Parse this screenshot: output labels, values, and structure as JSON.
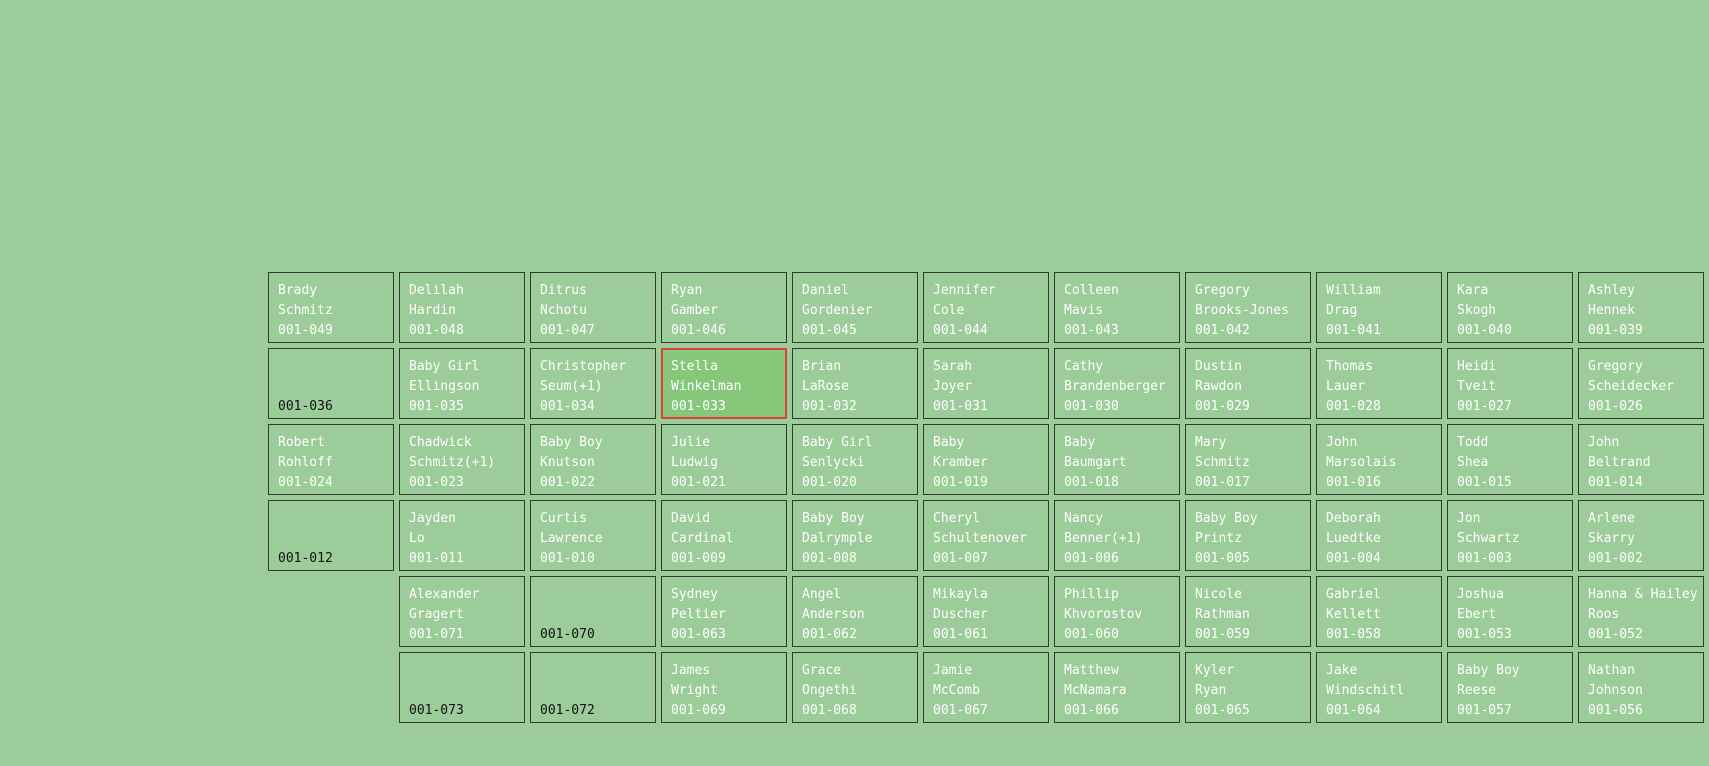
{
  "colors": {
    "background": "#9bcc99",
    "cell_border": "#2e3a2e",
    "selected_border": "#e0403a",
    "selected_fill": "#87c77a",
    "text_occupied": "#ffffff",
    "text_empty": "#111111"
  },
  "rows": [
    {
      "cells": [
        {
          "col": 0,
          "first": "Brady",
          "last": "Schmitz",
          "id": "001-049"
        },
        {
          "col": 1,
          "first": "Delilah",
          "last": "Hardin",
          "id": "001-048"
        },
        {
          "col": 2,
          "first": "Ditrus",
          "last": "Nchotu",
          "id": "001-047"
        },
        {
          "col": 3,
          "first": "Ryan",
          "last": "Gamber",
          "id": "001-046"
        },
        {
          "col": 4,
          "first": "Daniel",
          "last": "Gordenier",
          "id": "001-045"
        },
        {
          "col": 5,
          "first": "Jennifer",
          "last": "Cole",
          "id": "001-044"
        },
        {
          "col": 6,
          "first": "Colleen",
          "last": "Mavis",
          "id": "001-043"
        },
        {
          "col": 7,
          "first": "Gregory",
          "last": "Brooks-Jones",
          "id": "001-042"
        },
        {
          "col": 8,
          "first": "William",
          "last": "Drag",
          "id": "001-041"
        },
        {
          "col": 9,
          "first": "Kara",
          "last": "Skogh",
          "id": "001-040"
        },
        {
          "col": 10,
          "first": "Ashley",
          "last": "Hennek",
          "id": "001-039"
        }
      ]
    },
    {
      "cells": [
        {
          "col": 0,
          "first": "",
          "last": "",
          "id": "001-036"
        },
        {
          "col": 1,
          "first": "Baby Girl",
          "last": "Ellingson",
          "id": "001-035"
        },
        {
          "col": 2,
          "first": "Christopher",
          "last": "Seum(+1)",
          "id": "001-034"
        },
        {
          "col": 3,
          "first": "Stella",
          "last": "Winkelman",
          "id": "001-033",
          "selected": true
        },
        {
          "col": 4,
          "first": "Brian",
          "last": "LaRose",
          "id": "001-032"
        },
        {
          "col": 5,
          "first": "Sarah",
          "last": "Joyer",
          "id": "001-031"
        },
        {
          "col": 6,
          "first": "Cathy",
          "last": "Brandenberger",
          "id": "001-030"
        },
        {
          "col": 7,
          "first": "Dustin",
          "last": "Rawdon",
          "id": "001-029"
        },
        {
          "col": 8,
          "first": "Thomas",
          "last": "Lauer",
          "id": "001-028"
        },
        {
          "col": 9,
          "first": "Heidi",
          "last": "Tveit",
          "id": "001-027"
        },
        {
          "col": 10,
          "first": "Gregory",
          "last": "Scheidecker",
          "id": "001-026"
        }
      ]
    },
    {
      "cells": [
        {
          "col": 0,
          "first": "Robert",
          "last": "Rohloff",
          "id": "001-024"
        },
        {
          "col": 1,
          "first": "Chadwick",
          "last": "Schmitz(+1)",
          "id": "001-023"
        },
        {
          "col": 2,
          "first": "Baby Boy",
          "last": "Knutson",
          "id": "001-022"
        },
        {
          "col": 3,
          "first": "Julie",
          "last": "Ludwig",
          "id": "001-021"
        },
        {
          "col": 4,
          "first": "Baby Girl",
          "last": "Senlycki",
          "id": "001-020"
        },
        {
          "col": 5,
          "first": "Baby",
          "last": "Kramber",
          "id": "001-019"
        },
        {
          "col": 6,
          "first": "Baby",
          "last": "Baumgart",
          "id": "001-018"
        },
        {
          "col": 7,
          "first": "Mary",
          "last": "Schmitz",
          "id": "001-017"
        },
        {
          "col": 8,
          "first": "John",
          "last": "Marsolais",
          "id": "001-016"
        },
        {
          "col": 9,
          "first": "Todd",
          "last": "Shea",
          "id": "001-015"
        },
        {
          "col": 10,
          "first": "John",
          "last": "Beltrand",
          "id": "001-014"
        }
      ]
    },
    {
      "cells": [
        {
          "col": 0,
          "first": "",
          "last": "",
          "id": "001-012"
        },
        {
          "col": 1,
          "first": "Jayden",
          "last": "Lo",
          "id": "001-011"
        },
        {
          "col": 2,
          "first": "Curtis",
          "last": "Lawrence",
          "id": "001-010"
        },
        {
          "col": 3,
          "first": "David",
          "last": "Cardinal",
          "id": "001-009"
        },
        {
          "col": 4,
          "first": "Baby Boy",
          "last": "Dalrymple",
          "id": "001-008"
        },
        {
          "col": 5,
          "first": "Cheryl",
          "last": "Schultenover",
          "id": "001-007"
        },
        {
          "col": 6,
          "first": "Nancy",
          "last": "Benner(+1)",
          "id": "001-006"
        },
        {
          "col": 7,
          "first": "Baby Boy",
          "last": "Printz",
          "id": "001-005"
        },
        {
          "col": 8,
          "first": "Deborah",
          "last": "Luedtke",
          "id": "001-004"
        },
        {
          "col": 9,
          "first": "Jon",
          "last": "Schwartz",
          "id": "001-003"
        },
        {
          "col": 10,
          "first": "Arlene",
          "last": "Skarry",
          "id": "001-002"
        }
      ]
    },
    {
      "cells": [
        {
          "col": 1,
          "first": "Alexander",
          "last": "Gragert",
          "id": "001-071"
        },
        {
          "col": 2,
          "first": "",
          "last": "",
          "id": "001-070"
        },
        {
          "col": 3,
          "first": "Sydney",
          "last": "Peltier",
          "id": "001-063"
        },
        {
          "col": 4,
          "first": "Angel",
          "last": "Anderson",
          "id": "001-062"
        },
        {
          "col": 5,
          "first": "Mikayla",
          "last": "Duscher",
          "id": "001-061"
        },
        {
          "col": 6,
          "first": "Phillip",
          "last": "Khvorostov",
          "id": "001-060"
        },
        {
          "col": 7,
          "first": "Nicole",
          "last": "Rathman",
          "id": "001-059"
        },
        {
          "col": 8,
          "first": "Gabriel",
          "last": "Kellett",
          "id": "001-058"
        },
        {
          "col": 9,
          "first": "Joshua",
          "last": "Ebert",
          "id": "001-053"
        },
        {
          "col": 10,
          "first": "Hanna & Hailey",
          "last": "Roos",
          "id": "001-052"
        }
      ]
    },
    {
      "cells": [
        {
          "col": 1,
          "first": "",
          "last": "",
          "id": "001-073"
        },
        {
          "col": 2,
          "first": "",
          "last": "",
          "id": "001-072"
        },
        {
          "col": 3,
          "first": "James",
          "last": "Wright",
          "id": "001-069"
        },
        {
          "col": 4,
          "first": "Grace",
          "last": "Ongethi",
          "id": "001-068"
        },
        {
          "col": 5,
          "first": "Jamie",
          "last": "McComb",
          "id": "001-067"
        },
        {
          "col": 6,
          "first": "Matthew",
          "last": "McNamara",
          "id": "001-066"
        },
        {
          "col": 7,
          "first": "Kyler",
          "last": "Ryan",
          "id": "001-065"
        },
        {
          "col": 8,
          "first": "Jake",
          "last": "Windschitl",
          "id": "001-064"
        },
        {
          "col": 9,
          "first": "Baby Boy",
          "last": "Reese",
          "id": "001-057"
        },
        {
          "col": 10,
          "first": "Nathan",
          "last": "Johnson",
          "id": "001-056"
        }
      ]
    }
  ]
}
